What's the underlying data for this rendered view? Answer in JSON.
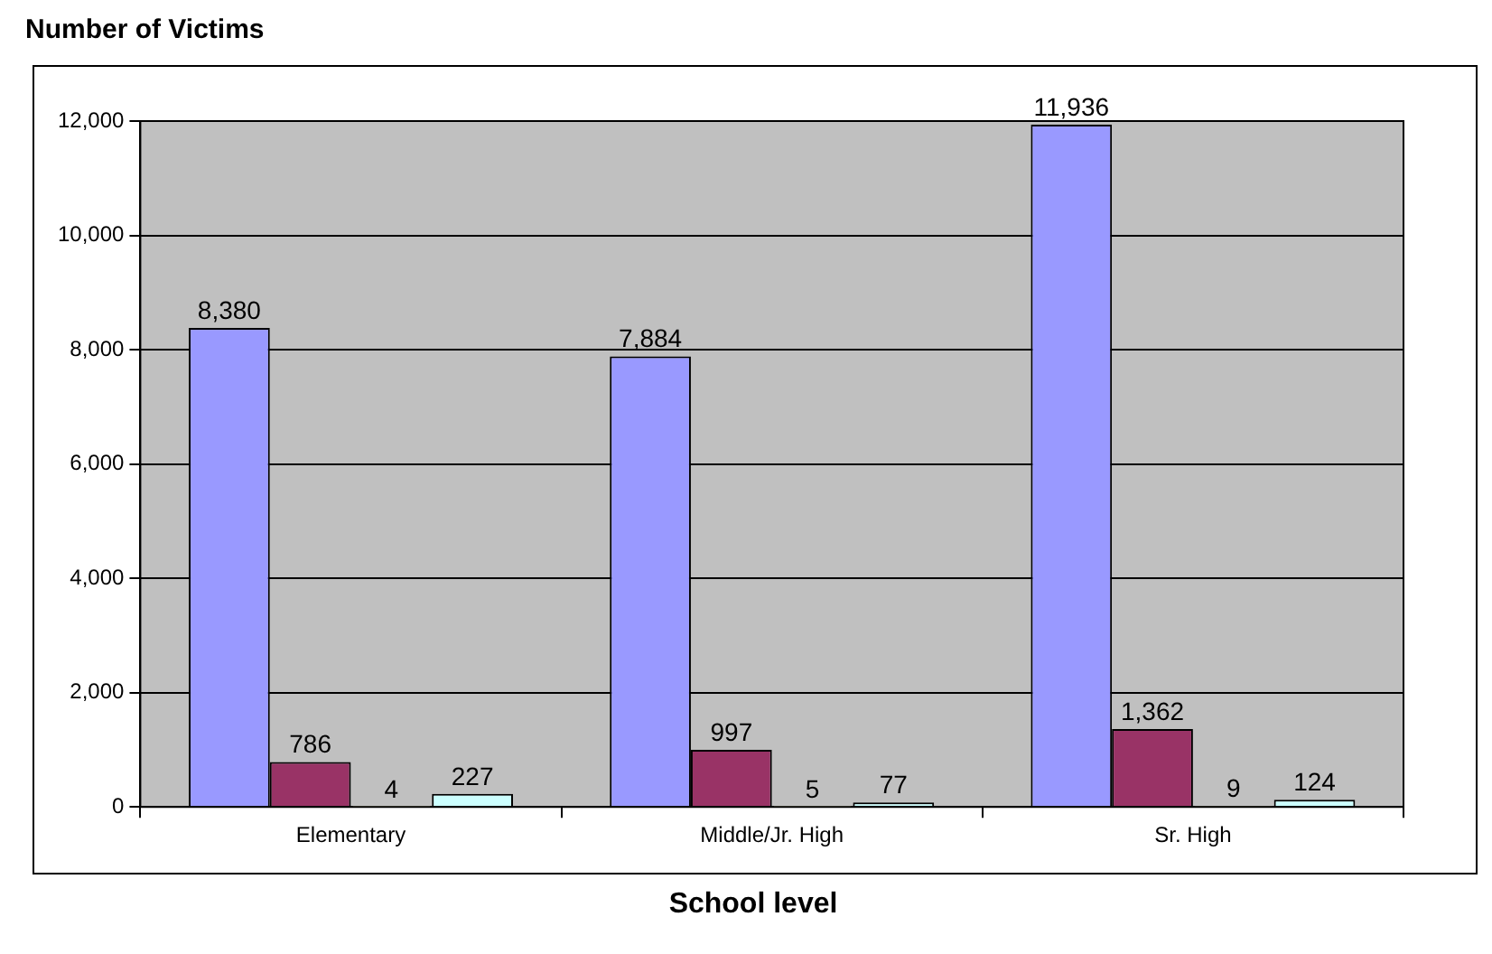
{
  "chart_data": {
    "type": "bar",
    "title": "Number of Victims",
    "xlabel": "School level",
    "categories": [
      "Elementary",
      "Middle/Jr. High",
      "Sr. High"
    ],
    "series": [
      {
        "color": "#9999ff",
        "values": [
          8380,
          7884,
          11936
        ],
        "value_labels": [
          "8,380",
          "7,884",
          "11,936"
        ]
      },
      {
        "color": "#993366",
        "values": [
          786,
          997,
          1362
        ],
        "value_labels": [
          "786",
          "997",
          "1,362"
        ]
      },
      {
        "color": "#ffffcc",
        "values": [
          4,
          5,
          9
        ],
        "value_labels": [
          "4",
          "5",
          "9"
        ]
      },
      {
        "color": "#ccffff",
        "values": [
          227,
          77,
          124
        ],
        "value_labels": [
          "227",
          "77",
          "124"
        ]
      }
    ],
    "ylim": [
      0,
      12000
    ],
    "yticks": [
      0,
      {
        "value": 2000,
        "label": "2,000"
      },
      {
        "value": 4000,
        "label": "4,000"
      },
      {
        "value": 6000,
        "label": "6,000"
      },
      {
        "value": 8000,
        "label": "8,000"
      },
      {
        "value": 10000,
        "label": "10,000"
      },
      {
        "value": 12000,
        "label": "12,000"
      }
    ],
    "grid": "y",
    "legend": false
  }
}
